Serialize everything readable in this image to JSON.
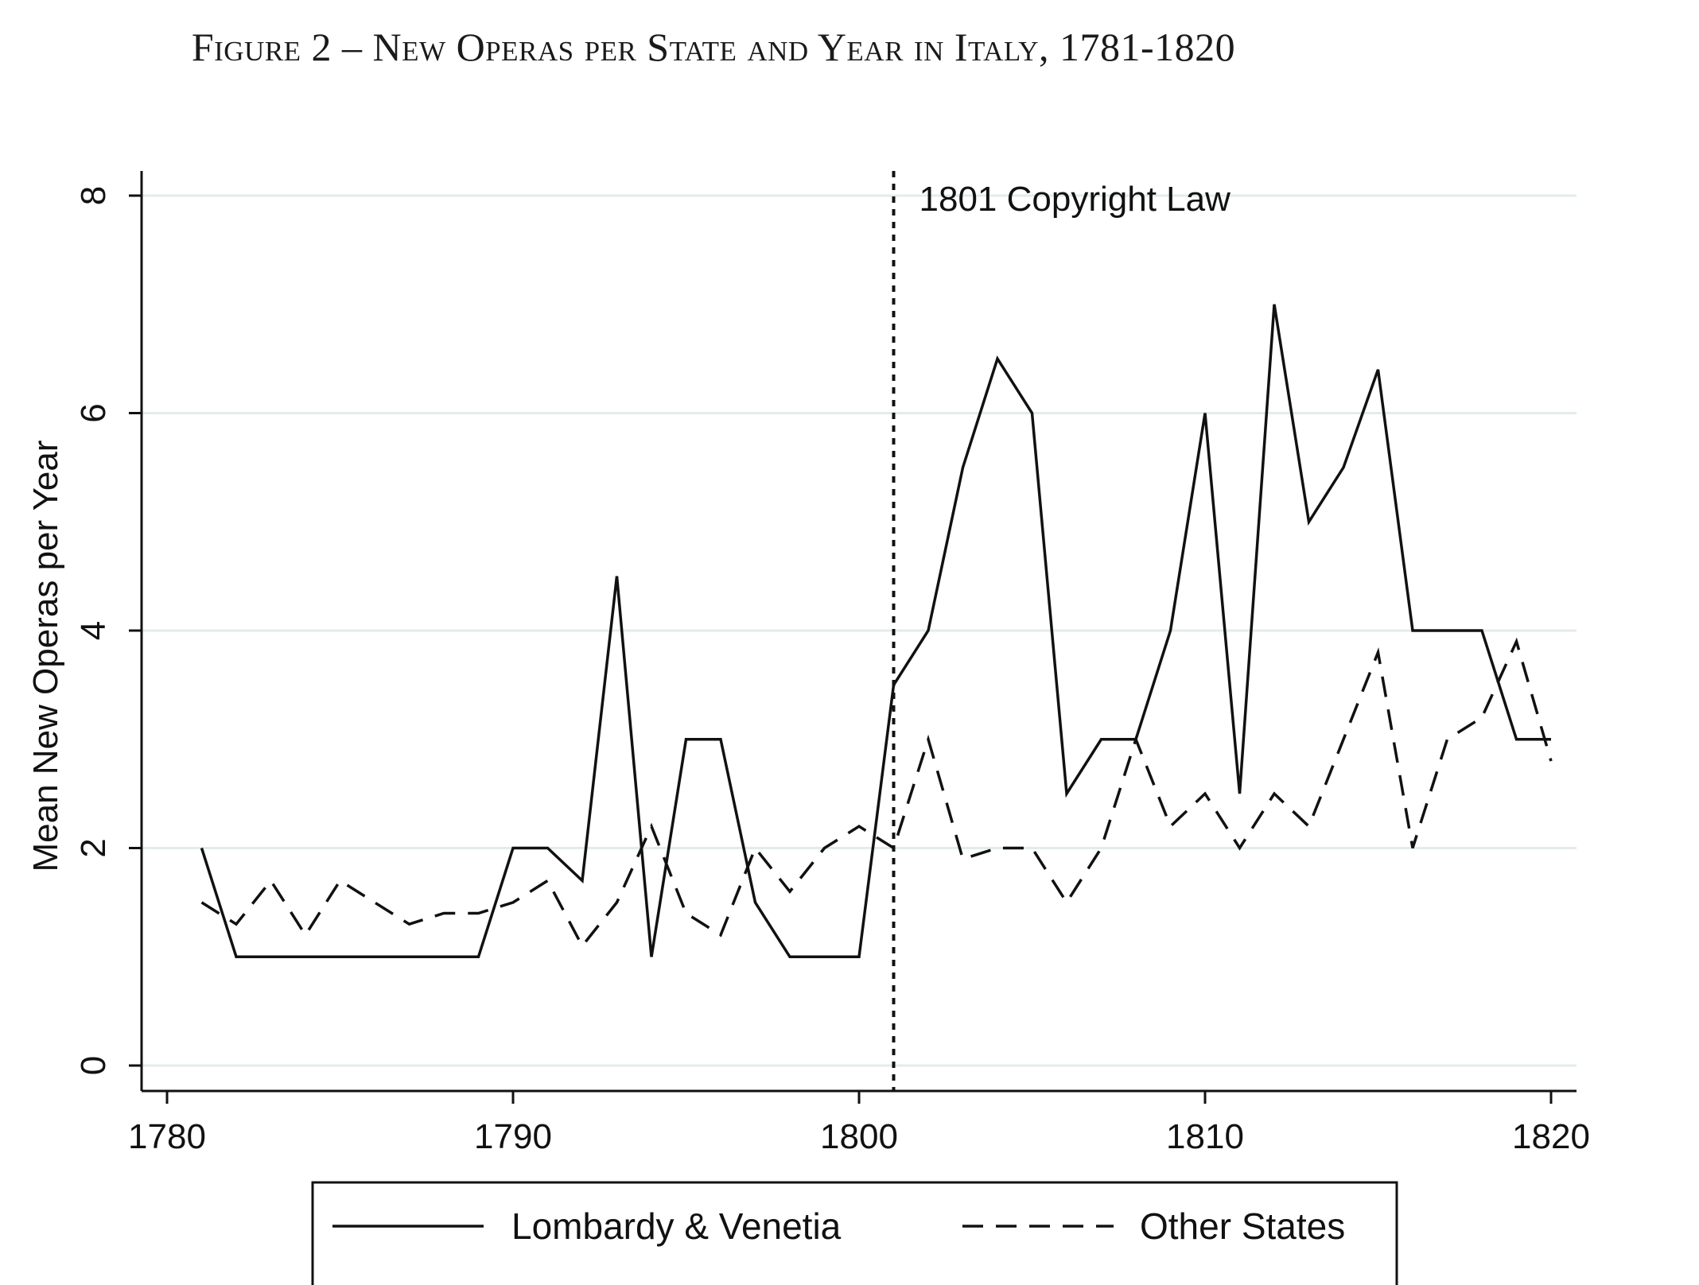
{
  "figure_title": "Figure 2 – New Operas per State and Year in Italy, 1781-1820",
  "colors": {
    "line": "#111111",
    "grid": "#e3ebeb",
    "axis": "#111111"
  },
  "chart_data": {
    "type": "line",
    "title": "Figure 2 – New Operas per State and Year in Italy, 1781-1820",
    "xlabel": "",
    "ylabel": "Mean New Operas per Year",
    "xlim": [
      1780,
      1820
    ],
    "ylim": [
      0,
      8
    ],
    "xticks": [
      1780,
      1790,
      1800,
      1810,
      1820
    ],
    "yticks": [
      0,
      2,
      4,
      6,
      8
    ],
    "grid": true,
    "legend_position": "bottom",
    "x": [
      1781,
      1782,
      1783,
      1784,
      1785,
      1786,
      1787,
      1788,
      1789,
      1790,
      1791,
      1792,
      1793,
      1794,
      1795,
      1796,
      1797,
      1798,
      1799,
      1800,
      1801,
      1802,
      1803,
      1804,
      1805,
      1806,
      1807,
      1808,
      1809,
      1810,
      1811,
      1812,
      1813,
      1814,
      1815,
      1816,
      1817,
      1818,
      1819,
      1820
    ],
    "series": [
      {
        "name": "Lombardy & Venetia",
        "style": "solid",
        "values": [
          2,
          1,
          1,
          1,
          1,
          1,
          1,
          1,
          1,
          2,
          2,
          1.7,
          4.5,
          1,
          3,
          3,
          1.5,
          1,
          1,
          1,
          3.5,
          4,
          5.5,
          6.5,
          6,
          2.5,
          3,
          3,
          4,
          6,
          2.5,
          7,
          5,
          5.5,
          6.4,
          4,
          4,
          4,
          3,
          3
        ]
      },
      {
        "name": "Other States",
        "style": "dashed",
        "values": [
          1.5,
          1.3,
          1.7,
          1.2,
          1.7,
          1.5,
          1.3,
          1.4,
          1.4,
          1.5,
          1.7,
          1.1,
          1.5,
          2.2,
          1.4,
          1.2,
          2,
          1.6,
          2,
          2.2,
          2,
          3,
          1.9,
          2,
          2,
          1.5,
          2,
          3,
          2.2,
          2.5,
          2,
          2.5,
          2.2,
          3,
          3.8,
          2,
          3,
          3.2,
          3.9,
          2.8
        ]
      }
    ],
    "annotations": [
      {
        "type": "vline",
        "x": 1801,
        "style": "dotted",
        "label": "1801 Copyright Law"
      }
    ]
  }
}
